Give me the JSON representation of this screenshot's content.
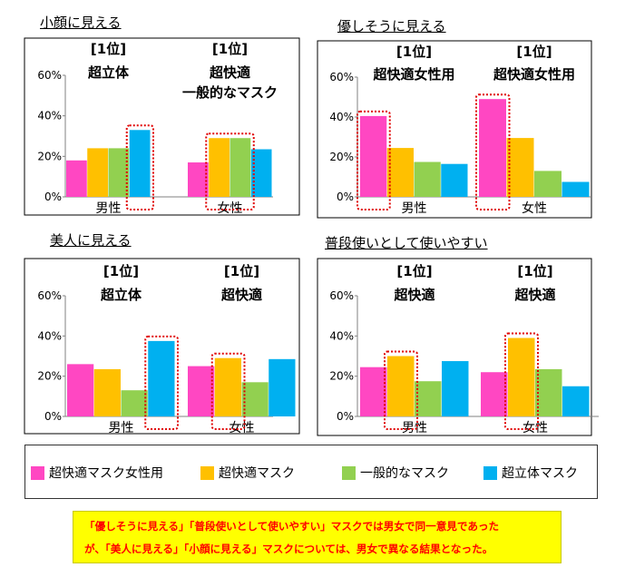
{
  "series_names": [
    "超快適マスク女性用",
    "超快適マスク",
    "一般的なマスク",
    "超立体マスク"
  ],
  "series_colors": [
    "#ff47c2",
    "#ffc000",
    "#92d050",
    "#00b0f0"
  ],
  "chart_data": [
    {
      "type": "bar",
      "title": "小顔に見える",
      "categories": [
        "男性",
        "女性"
      ],
      "y_ticks": [
        "0%",
        "20%",
        "40%",
        "60%"
      ],
      "ylim": [
        0,
        60
      ],
      "series": [
        {
          "name": "超快適マスク女性用",
          "values": [
            18,
            17
          ]
        },
        {
          "name": "超快適マスク",
          "values": [
            24,
            29
          ]
        },
        {
          "name": "一般的なマスク",
          "values": [
            24,
            29
          ]
        },
        {
          "name": "超立体マスク",
          "values": [
            33,
            23.5
          ]
        }
      ],
      "annotations": [
        {
          "category": "男性",
          "lines": [
            "[1位]",
            "超立体"
          ],
          "boxed_series": [
            "超立体マスク"
          ]
        },
        {
          "category": "女性",
          "lines": [
            "[1位]",
            "超快適",
            "一般的なマスク"
          ],
          "boxed_series": [
            "超快適マスク",
            "一般的なマスク"
          ]
        }
      ]
    },
    {
      "type": "bar",
      "title": "優しそうに見える",
      "categories": [
        "男性",
        "女性"
      ],
      "y_ticks": [
        "0%",
        "20%",
        "40%",
        "60%"
      ],
      "ylim": [
        0,
        60
      ],
      "series": [
        {
          "name": "超快適マスク女性用",
          "values": [
            40.5,
            49
          ]
        },
        {
          "name": "超快適マスク",
          "values": [
            24.5,
            29.5
          ]
        },
        {
          "name": "一般的なマスク",
          "values": [
            17.5,
            13
          ]
        },
        {
          "name": "超立体マスク",
          "values": [
            16.5,
            7.5
          ]
        }
      ],
      "annotations": [
        {
          "category": "男性",
          "lines": [
            "[1位]",
            "超快適女性用"
          ],
          "boxed_series": [
            "超快適マスク女性用"
          ]
        },
        {
          "category": "女性",
          "lines": [
            "[1位]",
            "超快適女性用"
          ],
          "boxed_series": [
            "超快適マスク女性用"
          ]
        }
      ]
    },
    {
      "type": "bar",
      "title": "美人に見える",
      "categories": [
        "男性",
        "女性"
      ],
      "y_ticks": [
        "0%",
        "20%",
        "40%",
        "60%"
      ],
      "ylim": [
        0,
        60
      ],
      "series": [
        {
          "name": "超快適マスク女性用",
          "values": [
            26,
            25
          ]
        },
        {
          "name": "超快適マスク",
          "values": [
            23.5,
            29
          ]
        },
        {
          "name": "一般的なマスク",
          "values": [
            13,
            17
          ]
        },
        {
          "name": "超立体マスク",
          "values": [
            37.5,
            28.5
          ]
        }
      ],
      "annotations": [
        {
          "category": "男性",
          "lines": [
            "[1位]",
            "超立体"
          ],
          "boxed_series": [
            "超立体マスク"
          ]
        },
        {
          "category": "女性",
          "lines": [
            "[1位]",
            "超快適"
          ],
          "boxed_series": [
            "超快適マスク"
          ]
        }
      ]
    },
    {
      "type": "bar",
      "title": "普段使いとして使いやすい",
      "categories": [
        "男性",
        "女性"
      ],
      "y_ticks": [
        "0%",
        "20%",
        "40%",
        "60%"
      ],
      "ylim": [
        0,
        60
      ],
      "series": [
        {
          "name": "超快適マスク女性用",
          "values": [
            24.5,
            22
          ]
        },
        {
          "name": "超快適マスク",
          "values": [
            30,
            39
          ]
        },
        {
          "name": "一般的なマスク",
          "values": [
            17.5,
            23.5
          ]
        },
        {
          "name": "超立体マスク",
          "values": [
            27.5,
            15
          ]
        }
      ],
      "annotations": [
        {
          "category": "男性",
          "lines": [
            "[1位]",
            "超快適"
          ],
          "boxed_series": [
            "超快適マスク"
          ]
        },
        {
          "category": "女性",
          "lines": [
            "[1位]",
            "超快適"
          ],
          "boxed_series": [
            "超快適マスク"
          ]
        }
      ]
    }
  ],
  "note": {
    "line1": "「優しそうに見える」「普段使いとして使いやすい」マスクでは男女で同一意見であった",
    "line2": "が、「美人に見える」「小顔に見える」マスクについては、男女で異なる結果となった。"
  }
}
